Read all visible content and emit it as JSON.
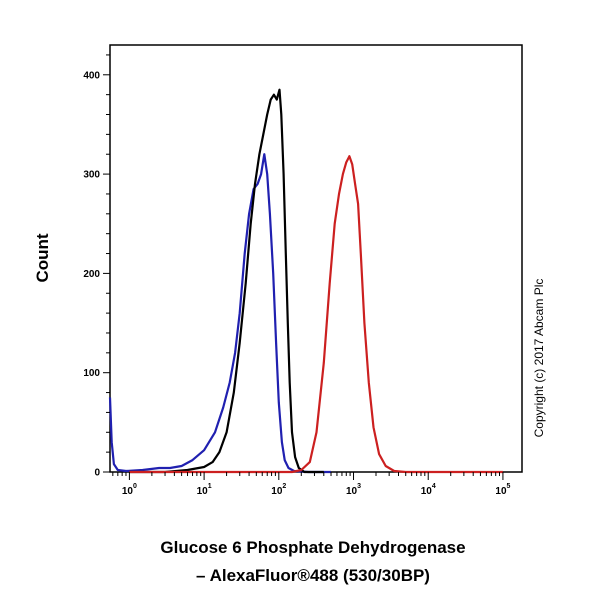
{
  "chart_data": {
    "type": "line",
    "title": [
      "Glucose 6 Phosphate Dehydrogenase",
      "– AlexaFluor®488 (530/30BP)"
    ],
    "ylabel": "Count",
    "xlabel": "",
    "xscale": "log",
    "xlim": [
      0.55,
      180000
    ],
    "ylim": [
      0,
      430
    ],
    "y_ticks": [
      0,
      100,
      200,
      300,
      400
    ],
    "x_ticks": [
      {
        "base": "10",
        "exp": "0",
        "value": 1
      },
      {
        "base": "10",
        "exp": "1",
        "value": 10
      },
      {
        "base": "10",
        "exp": "2",
        "value": 100
      },
      {
        "base": "10",
        "exp": "3",
        "value": 1000
      },
      {
        "base": "10",
        "exp": "4",
        "value": 10000
      },
      {
        "base": "10",
        "exp": "5",
        "value": 100000
      }
    ],
    "annotation": "Copyright (c) 2017 Abcam Plc",
    "series": [
      {
        "color": "#2020b0",
        "points": [
          [
            0.55,
            75
          ],
          [
            0.58,
            30
          ],
          [
            0.62,
            8
          ],
          [
            0.7,
            2
          ],
          [
            0.9,
            1
          ],
          [
            1.5,
            2
          ],
          [
            2.5,
            4
          ],
          [
            3.5,
            4
          ],
          [
            5,
            6
          ],
          [
            7,
            12
          ],
          [
            10,
            22
          ],
          [
            14,
            40
          ],
          [
            18,
            65
          ],
          [
            22,
            90
          ],
          [
            26,
            120
          ],
          [
            30,
            160
          ],
          [
            35,
            220
          ],
          [
            40,
            260
          ],
          [
            46,
            285
          ],
          [
            52,
            290
          ],
          [
            58,
            300
          ],
          [
            64,
            320
          ],
          [
            70,
            300
          ],
          [
            76,
            260
          ],
          [
            84,
            200
          ],
          [
            92,
            130
          ],
          [
            100,
            70
          ],
          [
            110,
            30
          ],
          [
            120,
            12
          ],
          [
            135,
            4
          ],
          [
            160,
            1
          ],
          [
            250,
            0
          ],
          [
            500,
            0
          ]
        ]
      },
      {
        "color": "#000000",
        "points": [
          [
            1,
            0
          ],
          [
            3,
            0
          ],
          [
            6,
            2
          ],
          [
            10,
            5
          ],
          [
            13,
            10
          ],
          [
            16,
            20
          ],
          [
            20,
            40
          ],
          [
            25,
            80
          ],
          [
            30,
            130
          ],
          [
            36,
            190
          ],
          [
            42,
            250
          ],
          [
            48,
            290
          ],
          [
            55,
            320
          ],
          [
            62,
            340
          ],
          [
            70,
            360
          ],
          [
            78,
            375
          ],
          [
            86,
            380
          ],
          [
            94,
            375
          ],
          [
            102,
            385
          ],
          [
            108,
            360
          ],
          [
            116,
            300
          ],
          [
            124,
            220
          ],
          [
            132,
            150
          ],
          [
            140,
            90
          ],
          [
            150,
            40
          ],
          [
            165,
            15
          ],
          [
            185,
            4
          ],
          [
            220,
            0
          ],
          [
            400,
            0
          ]
        ]
      },
      {
        "color": "#cc2020",
        "points": [
          [
            1,
            0
          ],
          [
            150,
            0
          ],
          [
            200,
            2
          ],
          [
            260,
            10
          ],
          [
            320,
            40
          ],
          [
            400,
            110
          ],
          [
            480,
            190
          ],
          [
            560,
            250
          ],
          [
            640,
            280
          ],
          [
            720,
            300
          ],
          [
            800,
            312
          ],
          [
            880,
            318
          ],
          [
            960,
            310
          ],
          [
            1050,
            290
          ],
          [
            1150,
            270
          ],
          [
            1250,
            220
          ],
          [
            1400,
            150
          ],
          [
            1600,
            90
          ],
          [
            1850,
            45
          ],
          [
            2200,
            18
          ],
          [
            2700,
            6
          ],
          [
            3500,
            1
          ],
          [
            5000,
            0
          ],
          [
            100000,
            0
          ]
        ]
      }
    ]
  }
}
